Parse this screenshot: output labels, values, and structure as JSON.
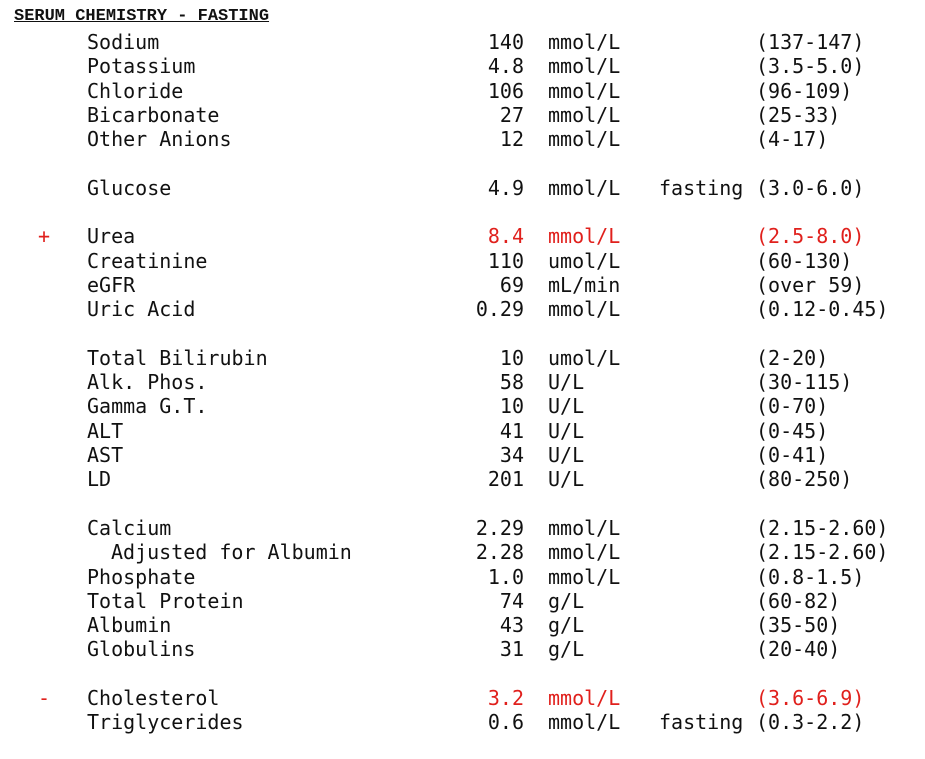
{
  "title": "SERUM CHEMISTRY - FASTING",
  "colors": {
    "abnormal": "#e0201c",
    "normal": "#111111"
  },
  "groups": [
    {
      "rows": [
        {
          "flag": "",
          "name": "Sodium",
          "value": "140",
          "unit": "mmol/L",
          "note": "",
          "range": "(137-147)"
        },
        {
          "flag": "",
          "name": "Potassium",
          "value": "4.8",
          "unit": "mmol/L",
          "note": "",
          "range": "(3.5-5.0)"
        },
        {
          "flag": "",
          "name": "Chloride",
          "value": "106",
          "unit": "mmol/L",
          "note": "",
          "range": "(96-109)"
        },
        {
          "flag": "",
          "name": "Bicarbonate",
          "value": "27",
          "unit": "mmol/L",
          "note": "",
          "range": "(25-33)"
        },
        {
          "flag": "",
          "name": "Other Anions",
          "value": "12",
          "unit": "mmol/L",
          "note": "",
          "range": "(4-17)"
        }
      ]
    },
    {
      "rows": [
        {
          "flag": "",
          "name": "Glucose",
          "value": "4.9",
          "unit": "mmol/L",
          "note": "fasting",
          "range": "(3.0-6.0)"
        }
      ]
    },
    {
      "rows": [
        {
          "flag": "+",
          "name": "Urea",
          "value": "8.4",
          "unit": "mmol/L",
          "note": "",
          "range": "(2.5-8.0)",
          "abnormal": true
        },
        {
          "flag": "",
          "name": "Creatinine",
          "value": "110",
          "unit": "umol/L",
          "note": "",
          "range": "(60-130)"
        },
        {
          "flag": "",
          "name": "eGFR",
          "value": "69",
          "unit": "mL/min",
          "note": "",
          "range": "(over 59)"
        },
        {
          "flag": "",
          "name": "Uric Acid",
          "value": "0.29",
          "unit": "mmol/L",
          "note": "",
          "range": "(0.12-0.45)"
        }
      ]
    },
    {
      "rows": [
        {
          "flag": "",
          "name": "Total Bilirubin",
          "value": "10",
          "unit": "umol/L",
          "note": "",
          "range": "(2-20)"
        },
        {
          "flag": "",
          "name": "Alk. Phos.",
          "value": "58",
          "unit": "U/L",
          "note": "",
          "range": "(30-115)"
        },
        {
          "flag": "",
          "name": "Gamma G.T.",
          "value": "10",
          "unit": "U/L",
          "note": "",
          "range": "(0-70)"
        },
        {
          "flag": "",
          "name": "ALT",
          "value": "41",
          "unit": "U/L",
          "note": "",
          "range": "(0-45)"
        },
        {
          "flag": "",
          "name": "AST",
          "value": "34",
          "unit": "U/L",
          "note": "",
          "range": "(0-41)"
        },
        {
          "flag": "",
          "name": "LD",
          "value": "201",
          "unit": "U/L",
          "note": "",
          "range": "(80-250)"
        }
      ]
    },
    {
      "rows": [
        {
          "flag": "",
          "name": "Calcium",
          "value": "2.29",
          "unit": "mmol/L",
          "note": "",
          "range": "(2.15-2.60)"
        },
        {
          "flag": "",
          "name": "Adjusted for Albumin",
          "value": "2.28",
          "unit": "mmol/L",
          "note": "",
          "range": "(2.15-2.60)",
          "indent": true
        },
        {
          "flag": "",
          "name": "Phosphate",
          "value": "1.0",
          "unit": "mmol/L",
          "note": "",
          "range": "(0.8-1.5)"
        },
        {
          "flag": "",
          "name": "Total Protein",
          "value": "74",
          "unit": "g/L",
          "note": "",
          "range": "(60-82)"
        },
        {
          "flag": "",
          "name": "Albumin",
          "value": "43",
          "unit": "g/L",
          "note": "",
          "range": "(35-50)"
        },
        {
          "flag": "",
          "name": "Globulins",
          "value": "31",
          "unit": "g/L",
          "note": "",
          "range": "(20-40)"
        }
      ]
    },
    {
      "rows": [
        {
          "flag": "-",
          "name": "Cholesterol",
          "value": "3.2",
          "unit": "mmol/L",
          "note": "",
          "range": "(3.6-6.9)",
          "abnormal": true
        },
        {
          "flag": "",
          "name": "Triglycerides",
          "value": "0.6",
          "unit": "mmol/L",
          "note": "fasting",
          "range": "(0.3-2.2)"
        }
      ]
    }
  ]
}
